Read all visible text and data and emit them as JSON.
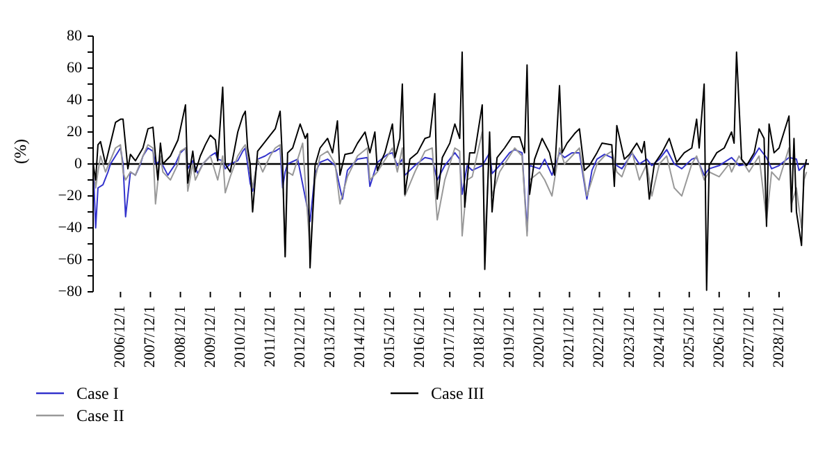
{
  "chart_data": {
    "type": "line",
    "ylabel": "(%)",
    "xlim": [
      "2006-01",
      "2029-12"
    ],
    "ylim": [
      -80,
      80
    ],
    "yticks": [
      -80,
      {
        "value": -70,
        "label": null
      },
      -60,
      {
        "value": -50,
        "label": null
      },
      -40,
      {
        "value": -30,
        "label": null
      },
      -20,
      {
        "value": -10,
        "label": null
      },
      0,
      {
        "value": 10,
        "label": null
      },
      20,
      {
        "value": 30,
        "label": null
      },
      40,
      {
        "value": 50,
        "label": null
      },
      60,
      {
        "value": 70,
        "label": null
      },
      80
    ],
    "xticks": [
      {
        "value": "2006-12-01",
        "label": "2006/12/1"
      },
      {
        "value": "2007-12-01",
        "label": "2007/12/1"
      },
      {
        "value": "2008-12-01",
        "label": "2008/12/1"
      },
      {
        "value": "2009-12-01",
        "label": "2009/12/1"
      },
      {
        "value": "2010-12-01",
        "label": "2010/12/1"
      },
      {
        "value": "2011-12-01",
        "label": "2011/12/1"
      },
      {
        "value": "2012-12-01",
        "label": "2012/12/1"
      },
      {
        "value": "2013-12-01",
        "label": "2013/12/1"
      },
      {
        "value": "2014-12-01",
        "label": "2014/12/1"
      },
      {
        "value": "2015-12-01",
        "label": "2015/12/1"
      },
      {
        "value": "2016-12-01",
        "label": "2016/12/1"
      },
      {
        "value": "2017-12-01",
        "label": "2017/12/1"
      },
      {
        "value": "2018-12-01",
        "label": "2018/12/1"
      },
      {
        "value": "2019-12-01",
        "label": "2019/12/1"
      },
      {
        "value": "2020-12-01",
        "label": "2020/12/1"
      },
      {
        "value": "2021-12-01",
        "label": "2021/12/1"
      },
      {
        "value": "2022-12-01",
        "label": "2022/12/1"
      },
      {
        "value": "2023-12-01",
        "label": "2023/12/1"
      },
      {
        "value": "2024-12-01",
        "label": "2024/12/1"
      },
      {
        "value": "2025-12-01",
        "label": "2025/12/1"
      },
      {
        "value": "2026-12-01",
        "label": "2026/12/1"
      },
      {
        "value": "2027-12-01",
        "label": "2027/12/1"
      },
      {
        "value": "2028-12-01",
        "label": "2028/12/1"
      }
    ],
    "grid": false,
    "legend": "bottom",
    "marker": "none",
    "line_style": "solid",
    "ref_lines": [
      {
        "axis": "y",
        "value": 0,
        "color": "#000000"
      }
    ],
    "series": [
      {
        "name": "Case I",
        "color": "#3333cc",
        "x": [
          "2006-01",
          "2006-02",
          "2006-03",
          "2006-05",
          "2006-07",
          "2006-08",
          "2006-10",
          "2006-12",
          "2007-01",
          "2007-02",
          "2007-04",
          "2007-06",
          "2007-08",
          "2007-09",
          "2007-11",
          "2008-01",
          "2008-02",
          "2008-04",
          "2008-07",
          "2008-10",
          "2008-12",
          "2009-02",
          "2009-03",
          "2009-05",
          "2009-07",
          "2009-09",
          "2009-12",
          "2010-02",
          "2010-03",
          "2010-05",
          "2010-06",
          "2010-08",
          "2010-11",
          "2011-01",
          "2011-02",
          "2011-03",
          "2011-04",
          "2011-05",
          "2011-07",
          "2011-10",
          "2011-12",
          "2012-02",
          "2012-04",
          "2012-05",
          "2012-06",
          "2012-07",
          "2012-11",
          "2013-04",
          "2013-06",
          "2013-08",
          "2013-11",
          "2014-02",
          "2014-05",
          "2014-07",
          "2014-11",
          "2015-03",
          "2015-04",
          "2015-07",
          "2015-11",
          "2016-01",
          "2016-03",
          "2016-05",
          "2016-06",
          "2016-10",
          "2017-02",
          "2017-05",
          "2017-07",
          "2017-10",
          "2018-02",
          "2018-04",
          "2018-05",
          "2018-07",
          "2018-09",
          "2019-01",
          "2019-04",
          "2019-05",
          "2019-08",
          "2019-12",
          "2020-02",
          "2020-05",
          "2020-07",
          "2020-08",
          "2020-12",
          "2021-02",
          "2021-05",
          "2021-08",
          "2021-10",
          "2022-01",
          "2022-04",
          "2022-07",
          "2022-09",
          "2022-11",
          "2023-02",
          "2023-05",
          "2023-07",
          "2023-09",
          "2023-12",
          "2024-01",
          "2024-04",
          "2024-07",
          "2024-09",
          "2024-12",
          "2025-03",
          "2025-06",
          "2025-09",
          "2026-01",
          "2026-03",
          "2026-06",
          "2026-08",
          "2026-12",
          "2027-04",
          "2027-05",
          "2027-08",
          "2027-12",
          "2028-04",
          "2028-07",
          "2028-09",
          "2028-12",
          "2029-04",
          "2029-07",
          "2029-08",
          "2029-10",
          "2029-11"
        ],
        "values": [
          0,
          -40,
          -15,
          -13,
          -5,
          0,
          5,
          10,
          0,
          -33,
          -5,
          -7,
          0,
          5,
          10,
          8,
          0,
          2,
          -7,
          0,
          7,
          10,
          -3,
          2,
          -6,
          0,
          5,
          7,
          3,
          2,
          -3,
          0,
          2,
          8,
          10,
          0,
          -12,
          -17,
          3,
          5,
          7,
          8,
          10,
          -15,
          -5,
          0,
          3,
          -36,
          -6,
          1,
          3,
          -1,
          -22,
          -4,
          3,
          4,
          -14,
          1,
          6,
          7,
          -1,
          3,
          -7,
          -1,
          4,
          3,
          -10,
          -1,
          7,
          3,
          -19,
          -1,
          -4,
          -1,
          7,
          -6,
          -1,
          7,
          9,
          7,
          -42,
          -1,
          -3,
          3,
          -7,
          7,
          4,
          7,
          7,
          -22,
          -4,
          3,
          6,
          4,
          -1,
          -3,
          4,
          7,
          0,
          3,
          -1,
          3,
          9,
          0,
          -3,
          3,
          4,
          -7,
          -3,
          -1,
          3,
          4,
          -1,
          0,
          10,
          4,
          -3,
          -1,
          4,
          3,
          -4,
          -1,
          1
        ]
      },
      {
        "name": "Case II",
        "color": "#999999",
        "x": [
          "2006-01",
          "2006-02",
          "2006-03",
          "2006-04",
          "2006-06",
          "2006-10",
          "2006-12",
          "2007-01",
          "2007-02",
          "2007-04",
          "2007-06",
          "2007-09",
          "2007-11",
          "2008-01",
          "2008-02",
          "2008-04",
          "2008-05",
          "2008-08",
          "2008-11",
          "2008-12",
          "2009-02",
          "2009-03",
          "2009-05",
          "2009-06",
          "2009-09",
          "2009-12",
          "2010-03",
          "2010-05",
          "2010-06",
          "2010-08",
          "2010-11",
          "2011-01",
          "2011-02",
          "2011-03",
          "2011-05",
          "2011-07",
          "2011-09",
          "2011-12",
          "2012-02",
          "2012-04",
          "2012-05",
          "2012-06",
          "2012-07",
          "2012-09",
          "2012-11",
          "2013-01",
          "2013-04",
          "2013-06",
          "2013-08",
          "2013-11",
          "2014-02",
          "2014-04",
          "2014-07",
          "2014-11",
          "2015-03",
          "2015-04",
          "2015-07",
          "2015-11",
          "2016-01",
          "2016-03",
          "2016-05",
          "2016-06",
          "2016-10",
          "2017-02",
          "2017-05",
          "2017-07",
          "2017-10",
          "2018-02",
          "2018-04",
          "2018-05",
          "2018-07",
          "2018-09",
          "2019-01",
          "2019-02",
          "2019-04",
          "2019-05",
          "2019-08",
          "2019-12",
          "2020-02",
          "2020-05",
          "2020-07",
          "2020-08",
          "2020-12",
          "2021-02",
          "2021-05",
          "2021-08",
          "2021-10",
          "2022-01",
          "2022-04",
          "2022-07",
          "2022-09",
          "2022-11",
          "2023-02",
          "2023-05",
          "2023-07",
          "2023-09",
          "2023-12",
          "2024-01",
          "2024-04",
          "2024-07",
          "2024-09",
          "2024-12",
          "2025-03",
          "2025-06",
          "2025-09",
          "2026-01",
          "2026-03",
          "2026-06",
          "2026-08",
          "2026-12",
          "2027-04",
          "2027-05",
          "2027-08",
          "2027-12",
          "2028-04",
          "2028-07",
          "2028-09",
          "2028-12",
          "2029-04",
          "2029-05",
          "2029-07",
          "2029-09",
          "2029-10",
          "2029-11"
        ],
        "values": [
          0,
          -15,
          -5,
          5,
          -5,
          10,
          12,
          -5,
          -10,
          -5,
          -7,
          5,
          12,
          10,
          -25,
          5,
          -5,
          -10,
          0,
          8,
          10,
          -17,
          0,
          -10,
          0,
          5,
          -10,
          5,
          -18,
          -8,
          5,
          10,
          12,
          5,
          -15,
          3,
          -5,
          5,
          10,
          12,
          -5,
          -58,
          -5,
          -7,
          3,
          13,
          -55,
          -10,
          5,
          8,
          0,
          -25,
          -8,
          5,
          10,
          -10,
          -5,
          5,
          10,
          -5,
          10,
          -20,
          -5,
          8,
          10,
          -35,
          -10,
          10,
          8,
          -45,
          -10,
          -8,
          20,
          -50,
          10,
          -20,
          -5,
          5,
          10,
          5,
          -45,
          -10,
          -5,
          -10,
          -20,
          10,
          0,
          5,
          10,
          -20,
          -10,
          0,
          5,
          8,
          -5,
          -8,
          5,
          8,
          -10,
          0,
          -20,
          0,
          5,
          -15,
          -20,
          0,
          5,
          -10,
          -5,
          -8,
          0,
          -5,
          5,
          -5,
          5,
          -35,
          -5,
          -10,
          10,
          -25,
          -15,
          -40,
          -10,
          -5
        ]
      },
      {
        "name": "Case III",
        "color": "#000000",
        "x": [
          "2006-01",
          "2006-02",
          "2006-03",
          "2006-04",
          "2006-06",
          "2006-10",
          "2006-12",
          "2007-01",
          "2007-03",
          "2007-04",
          "2007-06",
          "2007-09",
          "2007-11",
          "2008-01",
          "2008-02",
          "2008-03",
          "2008-04",
          "2008-05",
          "2008-08",
          "2008-11",
          "2008-12",
          "2009-02",
          "2009-03",
          "2009-05",
          "2009-06",
          "2009-08",
          "2009-10",
          "2009-12",
          "2010-02",
          "2010-03",
          "2010-05",
          "2010-06",
          "2010-08",
          "2010-11",
          "2011-01",
          "2011-02",
          "2011-03",
          "2011-04",
          "2011-05",
          "2011-07",
          "2011-09",
          "2011-12",
          "2012-02",
          "2012-04",
          "2012-05",
          "2012-06",
          "2012-07",
          "2012-09",
          "2012-12",
          "2013-02",
          "2013-03",
          "2013-04",
          "2013-06",
          "2013-08",
          "2013-11",
          "2014-01",
          "2014-03",
          "2014-04",
          "2014-06",
          "2014-09",
          "2014-11",
          "2015-02",
          "2015-04",
          "2015-06",
          "2015-07",
          "2015-10",
          "2016-01",
          "2016-02",
          "2016-04",
          "2016-05",
          "2016-06",
          "2016-08",
          "2016-11",
          "2017-02",
          "2017-04",
          "2017-06",
          "2017-07",
          "2017-09",
          "2017-12",
          "2018-02",
          "2018-04",
          "2018-05",
          "2018-06",
          "2018-08",
          "2018-10",
          "2019-01",
          "2019-02",
          "2019-04",
          "2019-05",
          "2019-07",
          "2019-10",
          "2020-01",
          "2020-04",
          "2020-06",
          "2020-07",
          "2020-08",
          "2020-10",
          "2021-01",
          "2021-04",
          "2021-06",
          "2021-08",
          "2021-09",
          "2021-11",
          "2022-02",
          "2022-04",
          "2022-06",
          "2022-08",
          "2022-11",
          "2023-01",
          "2023-05",
          "2023-06",
          "2023-07",
          "2023-10",
          "2023-12",
          "2024-03",
          "2024-05",
          "2024-06",
          "2024-08",
          "2024-10",
          "2025-01",
          "2025-04",
          "2025-07",
          "2025-10",
          "2026-01",
          "2026-03",
          "2026-04",
          "2026-06",
          "2026-07",
          "2026-08",
          "2026-11",
          "2027-02",
          "2027-05",
          "2027-06",
          "2027-07",
          "2027-09",
          "2027-11",
          "2028-02",
          "2028-04",
          "2028-06",
          "2028-07",
          "2028-08",
          "2028-10",
          "2028-12",
          "2029-04",
          "2029-05",
          "2029-06",
          "2029-07",
          "2029-09",
          "2029-10",
          "2029-11"
        ],
        "values": [
          0,
          -10,
          12,
          14,
          0,
          26,
          28,
          28,
          -3,
          6,
          2,
          10,
          22,
          23,
          5,
          -10,
          13,
          0,
          5,
          15,
          22,
          37,
          -12,
          8,
          -5,
          5,
          12,
          18,
          15,
          2,
          48,
          0,
          -5,
          20,
          30,
          33,
          10,
          0,
          -30,
          8,
          12,
          18,
          22,
          33,
          0,
          -58,
          7,
          10,
          25,
          16,
          19,
          -65,
          -1,
          10,
          16,
          7,
          27,
          -7,
          6,
          7,
          13,
          20,
          7,
          20,
          -4,
          7,
          25,
          4,
          16,
          50,
          -19,
          3,
          7,
          16,
          17,
          44,
          -22,
          4,
          13,
          25,
          16,
          70,
          -27,
          7,
          7,
          37,
          -66,
          20,
          -30,
          4,
          10,
          17,
          17,
          7,
          62,
          -19,
          3,
          16,
          7,
          -7,
          49,
          7,
          13,
          19,
          22,
          -4,
          -1,
          7,
          13,
          12,
          -14,
          24,
          3,
          6,
          13,
          7,
          14,
          -22,
          0,
          7,
          16,
          1,
          7,
          10,
          28,
          10,
          50,
          -79,
          -1,
          7,
          10,
          20,
          13,
          70,
          3,
          -1,
          7,
          22,
          16,
          -39,
          25,
          7,
          10,
          30,
          -30,
          16,
          -30,
          -51,
          -4,
          3
        ]
      }
    ]
  }
}
